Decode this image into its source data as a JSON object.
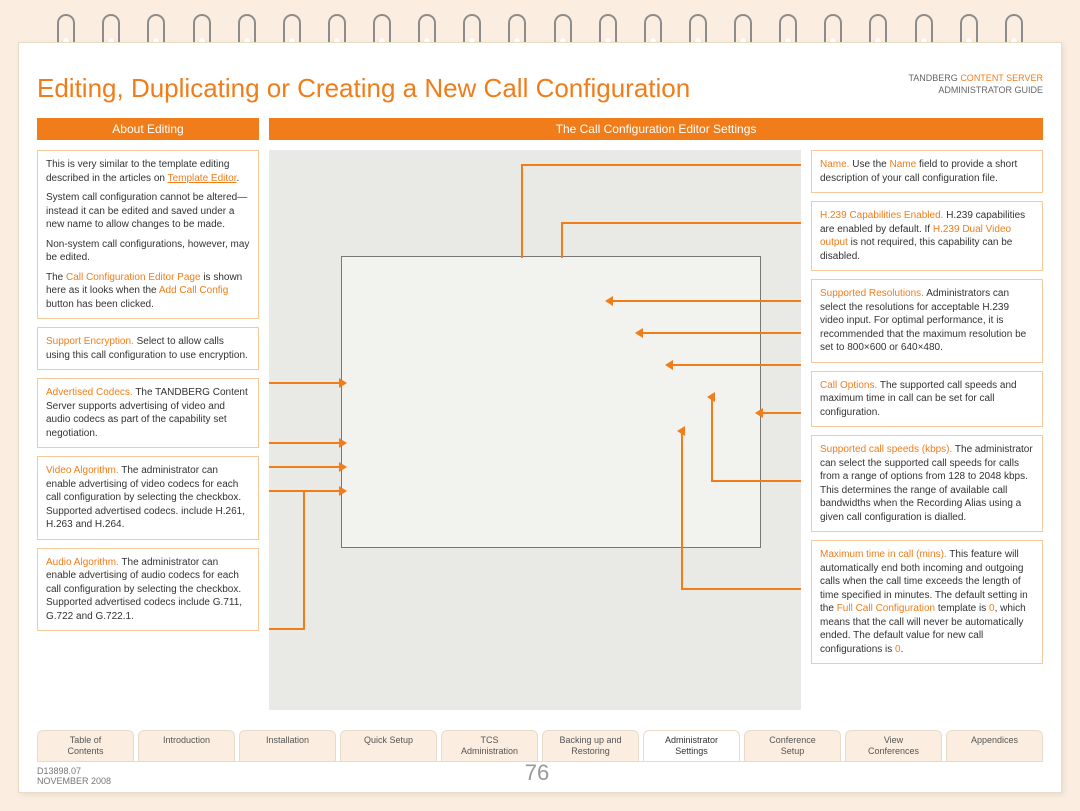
{
  "title": "Editing, Duplicating or Creating a New Call Configuration",
  "header_right": {
    "line1_a": "TANDBERG",
    "line1_b": "CONTENT SERVER",
    "line2": "ADMINISTRATOR GUIDE"
  },
  "section_headers": {
    "left": "About Editing",
    "right": "The Call Configuration Editor Settings"
  },
  "left_boxes": {
    "b0": {
      "p1a": "This is very similar to the template editing described in the articles on ",
      "p1_link": "Template Editor",
      "p1b": ".",
      "p2": "System call configuration cannot be altered— instead it can be edited and saved under a new name to allow changes to be made.",
      "p3": "Non-system call configurations, however, may be edited.",
      "p4a": "The ",
      "p4b": "Call Configuration Editor Page",
      "p4c": " is shown here as it looks when the ",
      "p4d": "Add Call Config",
      "p4e": " button has been clicked."
    },
    "b1": {
      "h": "Support Encryption.",
      "t": " Select to allow calls using this call configuration to use encryption."
    },
    "b2": {
      "h": "Advertised Codecs.",
      "t": " The TANDBERG Content Server supports advertising of video and audio codecs as part of the capability set negotiation."
    },
    "b3": {
      "h": "Video Algorithm.",
      "t": " The administrator can enable advertising of video codecs for each call configuration by selecting the checkbox. Supported advertised codecs. include H.261, H.263 and H.264."
    },
    "b4": {
      "h": "Audio Algorithm.",
      "t": " The administrator can enable advertising of audio codecs for each call configuration by selecting the checkbox. Supported advertised codecs include G.711, G.722 and G.722.1."
    }
  },
  "right_boxes": {
    "r0": {
      "h": "Name.",
      "a": " Use the ",
      "b": "Name",
      "c": " field to provide a short description of your call configuration file."
    },
    "r1": {
      "h": "H.239 Capabilities Enabled.",
      "a": " H.239 capabilities are enabled by default. If ",
      "b": "H.239 Dual Video output",
      "c": " is not required, this capability can be disabled."
    },
    "r2": {
      "h": "Supported Resolutions.",
      "t": " Administrators can select the resolutions for acceptable H.239 video input. For optimal performance, it is recommended that the maximum resolution be set to 800×600 or 640×480."
    },
    "r3": {
      "h": "Call Options.",
      "t": " The supported call speeds and maximum time in call can be set for call configuration."
    },
    "r4": {
      "h": "Supported call speeds (kbps).",
      "t": " The administrator can select the supported call speeds for calls from a range of options from 128 to 2048 kbps. This determines the range of available call bandwidths when the Recording Alias using a given call configuration is dialled."
    },
    "r5": {
      "h": "Maximum time in call (mins).",
      "a": " This feature will automatically end both incoming and outgoing calls when the call time exceeds the length of time specified in minutes. The default setting in the ",
      "b": "Full Call Configuration",
      "c": " template is ",
      "d": "0",
      "e": ", which means that the call will never be automatically ended. The default value for new call configurations is ",
      "f": "0",
      "g": "."
    }
  },
  "tabs": [
    "Table of\nContents",
    "Introduction",
    "Installation",
    "Quick Setup",
    "TCS\nAdministration",
    "Backing up and\nRestoring",
    "Administrator\nSettings",
    "Conference\nSetup",
    "View\nConferences",
    "Appendices"
  ],
  "active_tab": 6,
  "footer": {
    "doc": "D13898.07",
    "date": "NOVEMBER 2008",
    "page": "76"
  }
}
